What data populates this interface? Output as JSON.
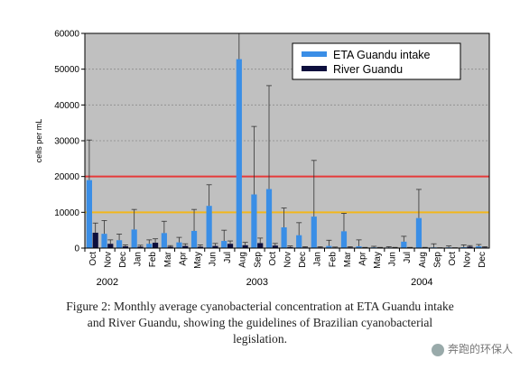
{
  "chart_data": {
    "type": "bar",
    "ylabel": "cells per mL",
    "ylim": [
      0,
      60000
    ],
    "yticks": [
      0,
      10000,
      20000,
      30000,
      40000,
      50000,
      60000
    ],
    "ytick_labels": [
      "0",
      "10000",
      "20000",
      "30000",
      "40000",
      "50000",
      "60000"
    ],
    "categories": [
      "Oct",
      "Nov",
      "Dec",
      "Jan",
      "Feb",
      "Mar",
      "Apr",
      "May",
      "Jun",
      "Jul",
      "Aug",
      "Sep",
      "Oct",
      "Nov",
      "Dec",
      "Jan",
      "Feb",
      "Mar",
      "Apr",
      "May",
      "Jun",
      "Jul",
      "Aug",
      "Sep",
      "Oct",
      "Nov",
      "Dec"
    ],
    "year_labels": [
      {
        "label": "2002",
        "category_index": 1
      },
      {
        "label": "2003",
        "category_index": 11
      },
      {
        "label": "2004",
        "category_index": 22
      }
    ],
    "series": [
      {
        "name": "ETA Guandu intake",
        "color": "#3a8ee6",
        "values": [
          19000,
          4000,
          2200,
          5200,
          1200,
          4200,
          1600,
          4800,
          11800,
          2000,
          52800,
          15000,
          16500,
          5800,
          3600,
          8800,
          600,
          4700,
          500,
          200,
          150,
          1800,
          8400,
          200,
          200,
          250,
          500
        ],
        "error_upper": [
          30200,
          7700,
          3900,
          10800,
          2300,
          7500,
          3000,
          10800,
          17700,
          5000,
          60000,
          34000,
          45400,
          11200,
          7100,
          24500,
          2200,
          9700,
          2300,
          500,
          400,
          3300,
          16400,
          1200,
          600,
          900,
          1000
        ]
      },
      {
        "name": "River Guandu",
        "color": "#0d0f3d",
        "values": [
          4300,
          1200,
          500,
          400,
          1500,
          400,
          600,
          400,
          600,
          1200,
          800,
          1400,
          700,
          300,
          200,
          200,
          150,
          200,
          100,
          100,
          100,
          100,
          100,
          50,
          50,
          400,
          200
        ],
        "error_upper": [
          7000,
          2300,
          900,
          800,
          2600,
          700,
          1200,
          900,
          1300,
          2000,
          1600,
          2800,
          1300,
          600,
          400,
          400,
          300,
          400,
          200,
          200,
          200,
          200,
          200,
          100,
          100,
          700,
          400
        ]
      }
    ],
    "reference_lines": [
      {
        "value": 20000,
        "color": "#e63a3a"
      },
      {
        "value": 10000,
        "color": "#f2b71c"
      }
    ],
    "legend": {
      "placement": "top-right",
      "entries": [
        "ETA Guandu intake",
        "River Guandu"
      ]
    },
    "plot_background": "#c0c0c0",
    "grid": "horizontal dashed"
  },
  "caption": {
    "line1": "Figure 2: Monthly average cyanobacterial concentration at ETA Guandu intake",
    "line2": "and River Guandu, showing the guidelines of Brazilian cyanobacterial",
    "line3": "legislation."
  },
  "watermark": {
    "text": "奔跑的环保人",
    "icon": "wechat-account-icon"
  }
}
